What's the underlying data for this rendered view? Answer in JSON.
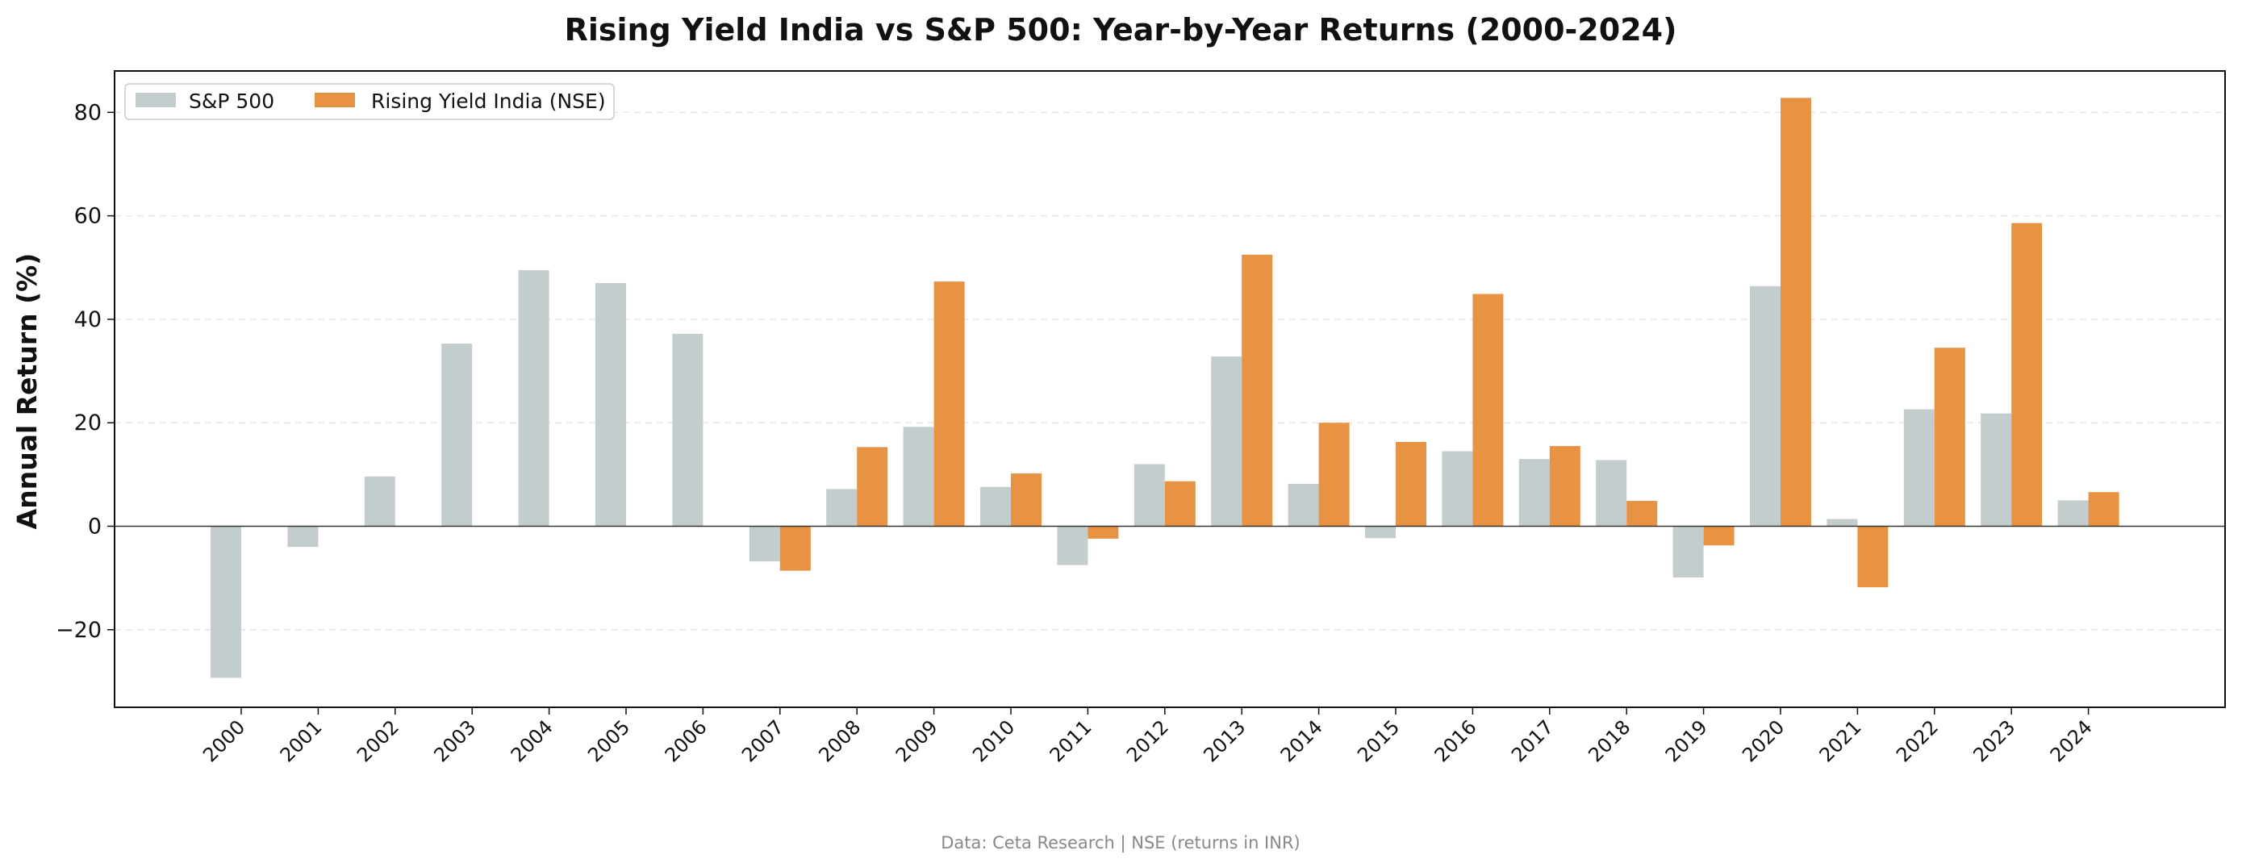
{
  "chart_data": {
    "type": "bar",
    "title": "Rising Yield India vs S&P 500: Year-by-Year Returns (2000-2024)",
    "xlabel": "",
    "ylabel": "Annual Return (%)",
    "ylim": [
      -35,
      88
    ],
    "yticks": [
      -20,
      0,
      20,
      40,
      60,
      80
    ],
    "yticks_labels": [
      "−20",
      "0",
      "20",
      "40",
      "60",
      "80"
    ],
    "grid": "horizontal dashed",
    "legend_position": "top-left",
    "categories": [
      "2000",
      "2001",
      "2002",
      "2003",
      "2004",
      "2005",
      "2006",
      "2007",
      "2008",
      "2009",
      "2010",
      "2011",
      "2012",
      "2013",
      "2014",
      "2015",
      "2016",
      "2017",
      "2018",
      "2019",
      "2020",
      "2021",
      "2022",
      "2023",
      "2024"
    ],
    "series": [
      {
        "name": "S&P 500",
        "color": "#c4cdcd",
        "values": [
          -29.3,
          -4.0,
          9.6,
          35.3,
          49.5,
          47.0,
          37.2,
          -6.8,
          7.2,
          19.2,
          7.6,
          -7.5,
          12.0,
          32.8,
          8.2,
          -2.3,
          14.5,
          13.0,
          12.8,
          -9.9,
          46.4,
          1.4,
          22.6,
          21.8,
          5.0
        ]
      },
      {
        "name": "Rising Yield India (NSE)",
        "color": "#e89243",
        "values": [
          null,
          null,
          null,
          null,
          null,
          null,
          null,
          -8.6,
          15.3,
          47.3,
          10.2,
          -2.4,
          8.7,
          52.5,
          20.0,
          16.3,
          44.9,
          15.5,
          4.9,
          -3.7,
          82.8,
          -11.8,
          34.5,
          58.6,
          6.6
        ]
      }
    ]
  },
  "source_note": "Data: Ceta Research | NSE (returns in INR)"
}
